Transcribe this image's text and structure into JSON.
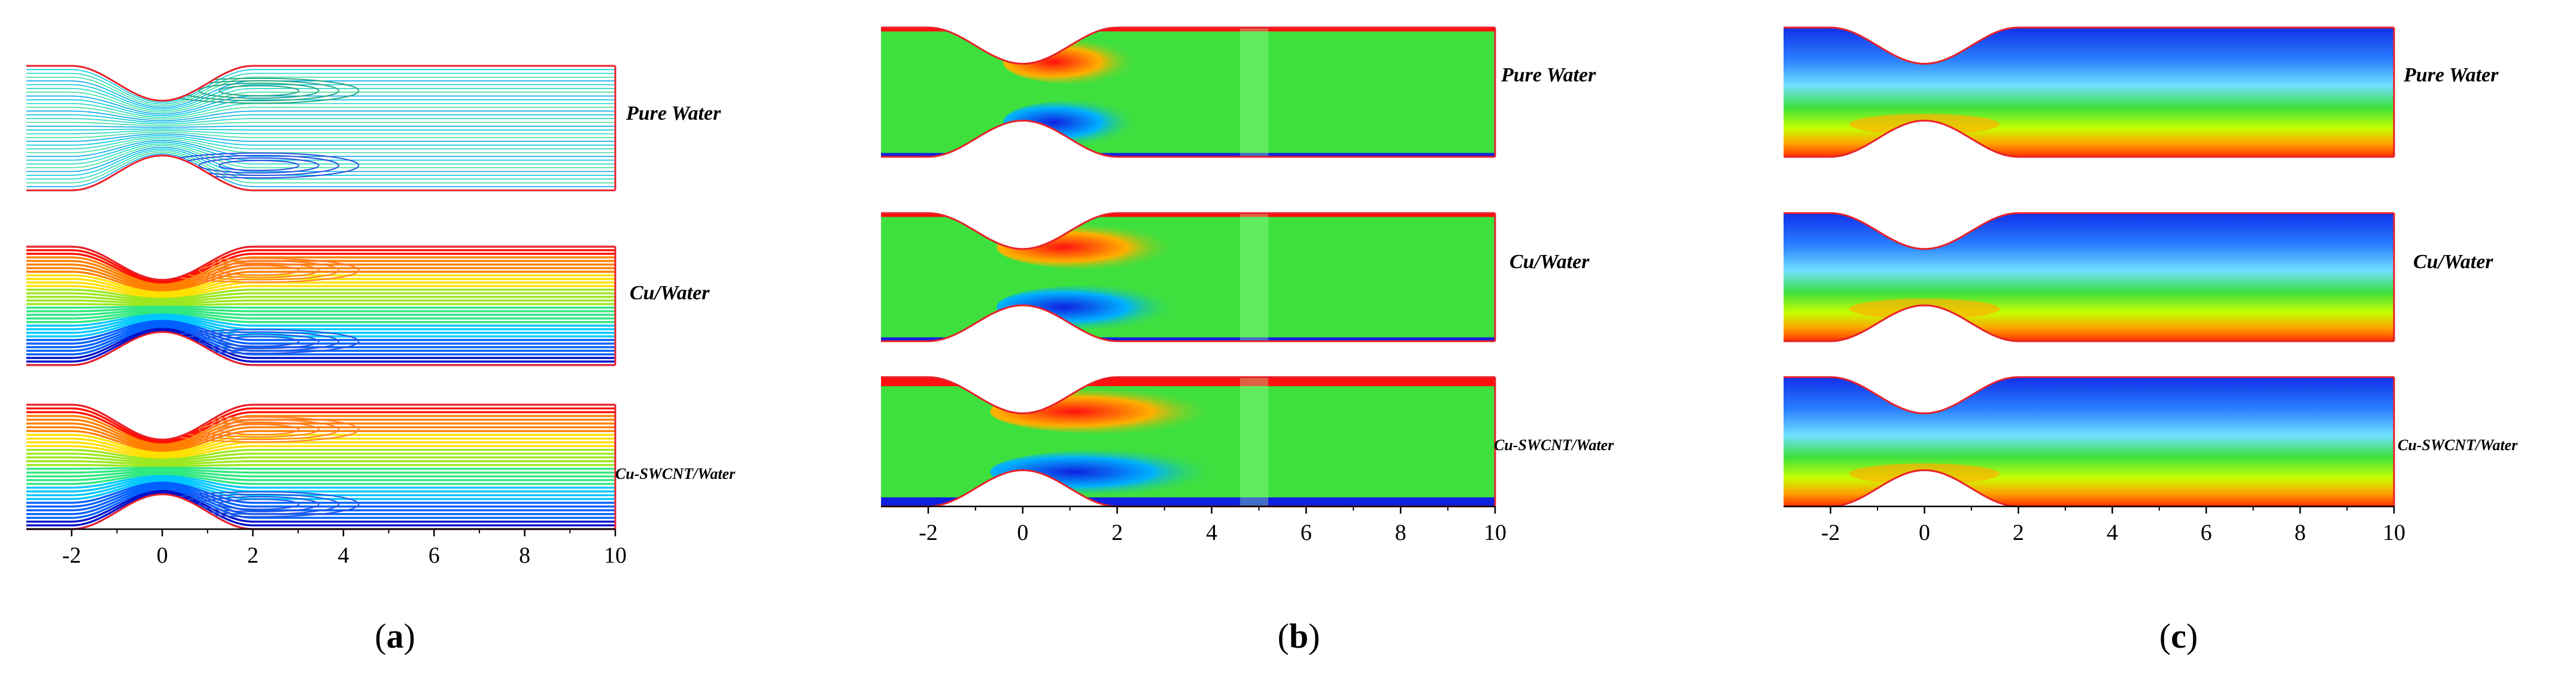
{
  "panels": [
    {
      "id": "a",
      "caption_open": "(",
      "caption_letter": "a",
      "caption_close": ")",
      "render": "streamlines",
      "cases": [
        "Pure Water",
        "Cu/Water",
        "Cu-SWCNT/Water"
      ],
      "x_ticks": [
        "-2",
        "0",
        "2",
        "4",
        "6",
        "8",
        "10"
      ],
      "x_values": [
        -2,
        0,
        2,
        4,
        6,
        8,
        10
      ],
      "x_range": [
        -3,
        10
      ]
    },
    {
      "id": "b",
      "caption_open": "(",
      "caption_letter": "b",
      "caption_close": ")",
      "render": "vorticity",
      "cases": [
        "Pure Water",
        "Cu/Water",
        "Cu-SWCNT/Water"
      ],
      "x_ticks": [
        "-2",
        "0",
        "2",
        "4",
        "6",
        "8",
        "10"
      ],
      "x_values": [
        -2,
        0,
        2,
        4,
        6,
        8,
        10
      ],
      "x_range": [
        -3,
        10
      ]
    },
    {
      "id": "c",
      "caption_open": "(",
      "caption_letter": "c",
      "caption_close": ")",
      "render": "temperature",
      "cases": [
        "Pure Water",
        "Cu/Water",
        "Cu-SWCNT/Water"
      ],
      "x_ticks": [
        "-2",
        "0",
        "2",
        "4",
        "6",
        "8",
        "10"
      ],
      "x_values": [
        -2,
        0,
        2,
        4,
        6,
        8,
        10
      ],
      "x_range": [
        -3,
        10
      ]
    }
  ],
  "colors": {
    "wall": "#e8202a",
    "axis": "#000000",
    "field_background": "#3ee03e",
    "hot": "#ff1010",
    "cold": "#1020e0",
    "heat_source": "#ff3000",
    "cool_top": "#1030e8"
  },
  "geometry_model": {
    "throat_center_x": 0,
    "stenosis_halfwidth_x": 2,
    "stenosis_depth_fraction": 0.28
  }
}
